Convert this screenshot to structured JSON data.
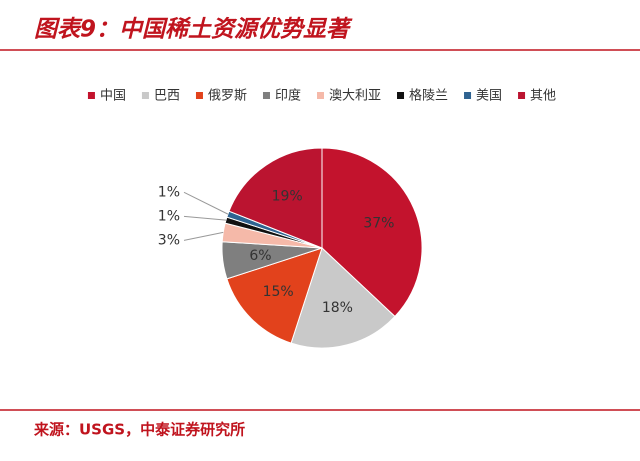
{
  "chart_data": {
    "type": "pie",
    "title": "图表9：中国稀土资源优势显著",
    "categories": [
      "中国",
      "巴西",
      "俄罗斯",
      "印度",
      "澳大利亚",
      "格陵兰",
      "美国",
      "其他"
    ],
    "values": [
      37,
      18,
      15,
      6,
      3,
      1,
      1,
      19
    ],
    "value_labels": [
      "37%",
      "18%",
      "15%",
      "6%",
      "3%",
      "1%",
      "1%",
      "19%"
    ],
    "colors": [
      "#c3132d",
      "#c9c9c9",
      "#e2421c",
      "#7f7f7f",
      "#f5b9a9",
      "#111111",
      "#2f6391",
      "#bb1430"
    ],
    "legend": "top",
    "source": "来源：USGS，中泰证券研究所"
  }
}
